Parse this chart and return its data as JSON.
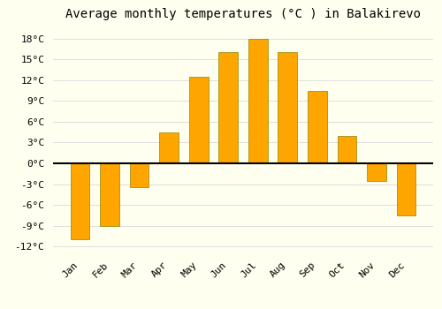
{
  "title": "Average monthly temperatures (°C ) in Balakirevo",
  "months": [
    "Jan",
    "Feb",
    "Mar",
    "Apr",
    "May",
    "Jun",
    "Jul",
    "Aug",
    "Sep",
    "Oct",
    "Nov",
    "Dec"
  ],
  "values": [
    -11,
    -9,
    -3.5,
    4.5,
    12.5,
    16,
    18,
    16,
    10.5,
    4,
    -2.5,
    -7.5
  ],
  "bar_color": "#FFA500",
  "bar_edge_color": "#888800",
  "background_color": "#FFFFF0",
  "ylim": [
    -13,
    20
  ],
  "yticks": [
    -12,
    -9,
    -6,
    -3,
    0,
    3,
    6,
    9,
    12,
    15,
    18
  ],
  "ytick_labels": [
    "-12°C",
    "-9°C",
    "-6°C",
    "-3°C",
    "0°C",
    "3°C",
    "6°C",
    "9°C",
    "12°C",
    "15°C",
    "18°C"
  ],
  "title_fontsize": 10,
  "tick_fontsize": 8,
  "grid_color": "#DDDDDD",
  "bar_width": 0.65
}
